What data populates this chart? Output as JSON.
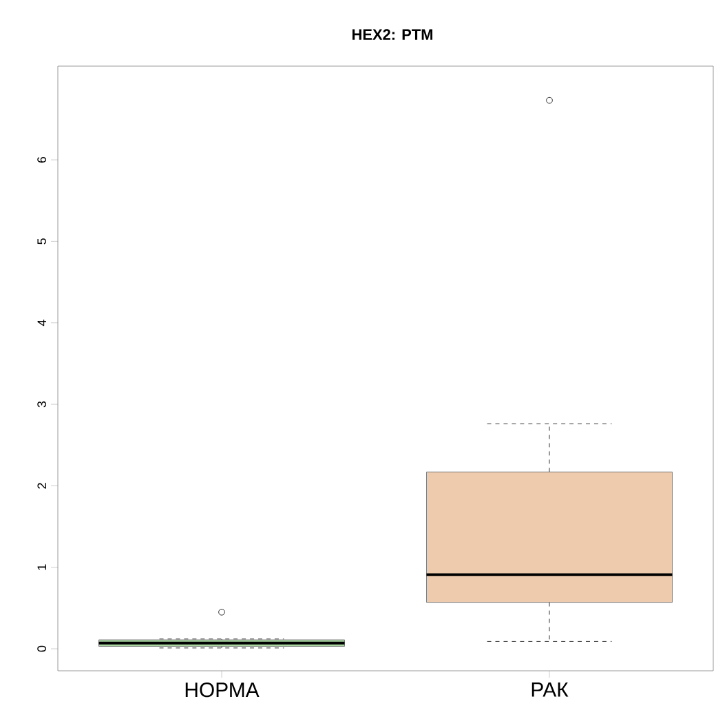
{
  "chart_data": {
    "type": "box",
    "title": "HEX2: PTM",
    "categories": [
      "НОРМА",
      "РАК"
    ],
    "colors": [
      "#a8d5a0",
      "#eecbad"
    ],
    "boxes": [
      {
        "low": 0.01,
        "q1": 0.03,
        "median": 0.07,
        "q3": 0.11,
        "high": 0.12,
        "outliers": [
          0.45
        ]
      },
      {
        "low": 0.09,
        "q1": 0.57,
        "median": 0.91,
        "q3": 2.17,
        "high": 2.76,
        "outliers": [
          6.73
        ]
      }
    ],
    "ylim": [
      -0.27,
      7.15
    ],
    "yticks": [
      0,
      1,
      2,
      3,
      4,
      5,
      6
    ]
  }
}
